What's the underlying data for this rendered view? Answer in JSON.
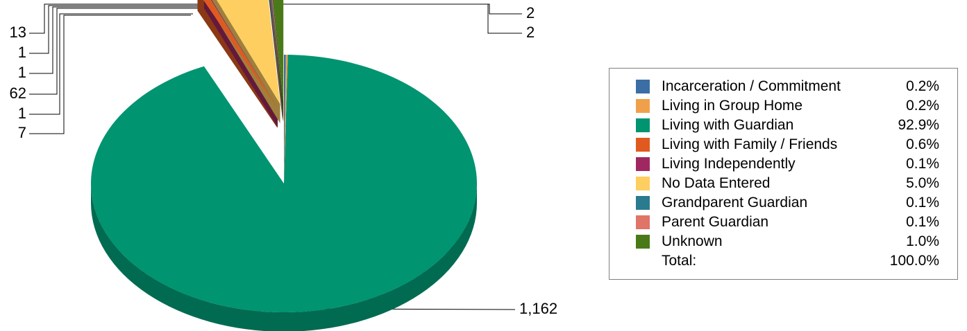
{
  "chart_data": {
    "type": "pie",
    "style": "3d-exploded",
    "categories": [
      "Incarceration / Commitment",
      "Living in Group Home",
      "Living with Guardian",
      "Living with Family / Friends",
      "Living Independently",
      "No Data Entered",
      "Grandparent Guardian",
      "Parent Guardian",
      "Unknown"
    ],
    "values": [
      2,
      2,
      1162,
      7,
      1,
      62,
      1,
      1,
      13
    ],
    "value_labels": [
      "2",
      "2",
      "1,162",
      "7",
      "1",
      "62",
      "1",
      "1",
      "13"
    ],
    "percent_labels": [
      "0.2%",
      "0.2%",
      "92.9%",
      "0.6%",
      "0.1%",
      "5.0%",
      "0.1%",
      "0.1%",
      "1.0%"
    ],
    "colors": [
      "#3a6ea5",
      "#f0a04b",
      "#009470",
      "#e05a20",
      "#a02860",
      "#ffce60",
      "#2a7a90",
      "#e07468",
      "#4a7a18"
    ],
    "legend_position": "right",
    "legend": {
      "total_label": "Total:",
      "total_value": "100.0%"
    }
  }
}
